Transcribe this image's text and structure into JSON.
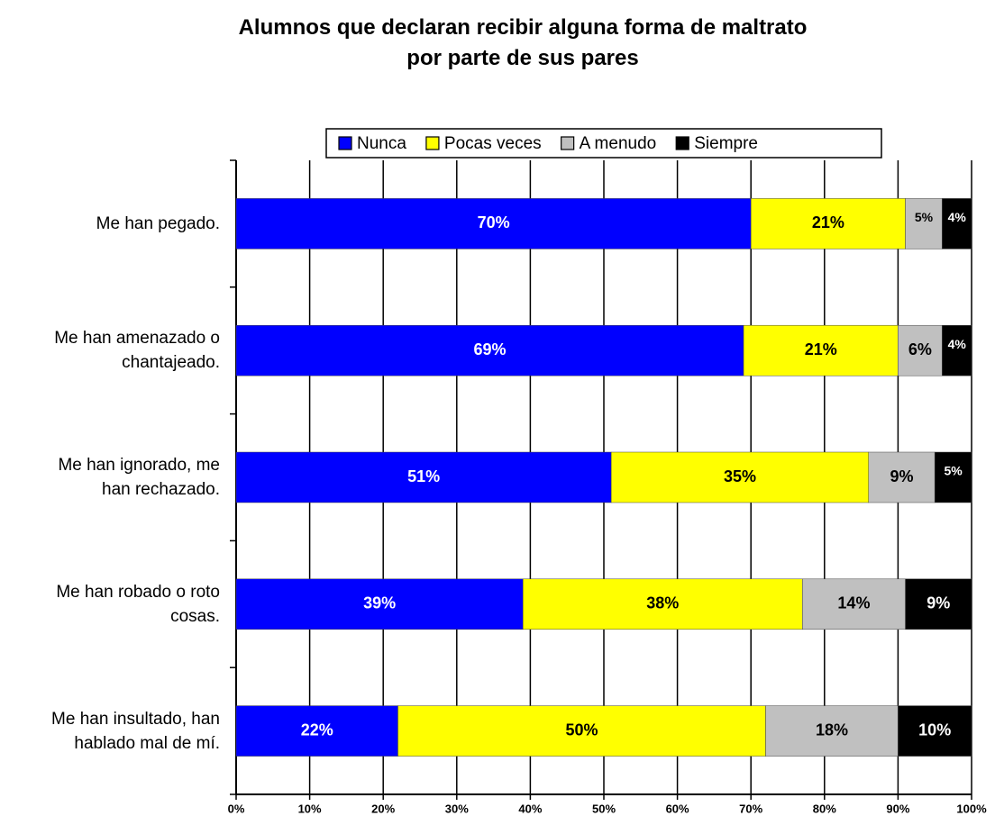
{
  "chart_data": {
    "type": "stacked_barh",
    "title": "Alumnos que declaran recibir alguna forma de maltrato\npor parte de sus pares",
    "categories": [
      "Me han pegado.",
      "Me han amenazado o\nchantajeado.",
      "Me han ignorado, me\nhan rechazado.",
      "Me han robado o roto\ncosas.",
      "Me han insultado, han\nhablado mal de mí."
    ],
    "series": [
      {
        "name": "Nunca",
        "color": "#0000ff",
        "label_color": "#ffffff",
        "values": [
          70,
          69,
          51,
          39,
          22
        ],
        "value_labels": [
          "70%",
          "69%",
          "51%",
          "39%",
          "22%"
        ]
      },
      {
        "name": "Pocas veces",
        "color": "#ffff00",
        "label_color": "#000000",
        "values": [
          21,
          21,
          35,
          38,
          50
        ],
        "value_labels": [
          "21%",
          "21%",
          "35%",
          "38%",
          "50%"
        ]
      },
      {
        "name": "A menudo",
        "color": "#c0c0c0",
        "label_color": "#000000",
        "values": [
          5,
          6,
          9,
          14,
          18
        ],
        "value_labels": [
          "5%",
          "6%",
          "9%",
          "14%",
          "18%"
        ]
      },
      {
        "name": "Siempre",
        "color": "#000000",
        "label_color": "#ffffff",
        "values": [
          4,
          4,
          5,
          9,
          10
        ],
        "value_labels": [
          "4%",
          "4%",
          "5%",
          "9%",
          "10%"
        ]
      }
    ],
    "xlim": [
      0,
      100
    ],
    "xticks": [
      {
        "value": 0,
        "label": "0%"
      },
      {
        "value": 10,
        "label": "10%"
      },
      {
        "value": 20,
        "label": "20%"
      },
      {
        "value": 30,
        "label": "30%"
      },
      {
        "value": 40,
        "label": "40%"
      },
      {
        "value": 50,
        "label": "50%"
      },
      {
        "value": 60,
        "label": "60%"
      },
      {
        "value": 70,
        "label": "70%"
      },
      {
        "value": 80,
        "label": "80%"
      },
      {
        "value": 90,
        "label": "90%"
      },
      {
        "value": 100,
        "label": "100%"
      }
    ],
    "grid": true,
    "legend": "top"
  }
}
